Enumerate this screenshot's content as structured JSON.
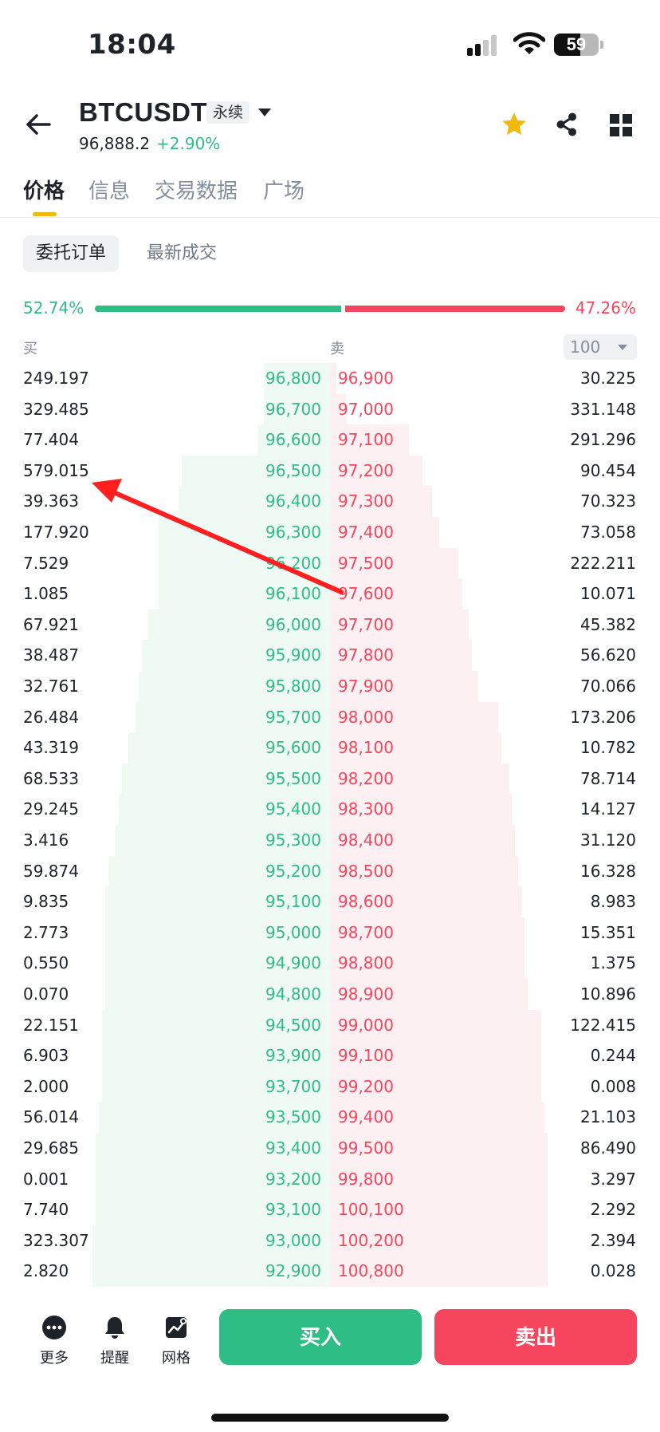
{
  "status_bar": {
    "time": "18:04",
    "battery": "59"
  },
  "header": {
    "symbol": "BTCUSDT",
    "contract_badge": "永续",
    "last_price": "96,888.2",
    "change": "+2.90%"
  },
  "tabs": [
    {
      "label": "价格",
      "active": true
    },
    {
      "label": "信息",
      "active": false
    },
    {
      "label": "交易数据",
      "active": false
    },
    {
      "label": "广场",
      "active": false
    }
  ],
  "subtabs": {
    "active": "委托订单",
    "inactive": "最新成交"
  },
  "ratio": {
    "buy_label": "52.74%",
    "sell_label": "47.26%",
    "buy_fraction": 0.5274
  },
  "columns": {
    "buy": "买",
    "sell": "卖",
    "depth": "100"
  },
  "order_book": [
    {
      "bid_qty": "249.197",
      "bid_price": "96,800",
      "ask_price": "96,900",
      "ask_qty": "30.225",
      "bid_depth": 0.2,
      "ask_depth": 0.02
    },
    {
      "bid_qty": "329.485",
      "bid_price": "96,700",
      "ask_price": "97,000",
      "ask_qty": "331.148",
      "bid_depth": 0.2,
      "ask_depth": 0.05
    },
    {
      "bid_qty": "77.404",
      "bid_price": "96,600",
      "ask_price": "97,100",
      "ask_qty": "291.296",
      "bid_depth": 0.22,
      "ask_depth": 0.24
    },
    {
      "bid_qty": "579.015",
      "bid_price": "96,500",
      "ask_price": "97,200",
      "ask_qty": "90.454",
      "bid_depth": 0.45,
      "ask_depth": 0.28
    },
    {
      "bid_qty": "39.363",
      "bid_price": "96,400",
      "ask_price": "97,300",
      "ask_qty": "70.323",
      "bid_depth": 0.46,
      "ask_depth": 0.31
    },
    {
      "bid_qty": "177.920",
      "bid_price": "96,300",
      "ask_price": "97,400",
      "ask_qty": "73.058",
      "bid_depth": 0.52,
      "ask_depth": 0.33
    },
    {
      "bid_qty": "7.529",
      "bid_price": "96,200",
      "ask_price": "97,500",
      "ask_qty": "222.211",
      "bid_depth": 0.52,
      "ask_depth": 0.39
    },
    {
      "bid_qty": "1.085",
      "bid_price": "96,100",
      "ask_price": "97,600",
      "ask_qty": "10.071",
      "bid_depth": 0.52,
      "ask_depth": 0.4
    },
    {
      "bid_qty": "67.921",
      "bid_price": "96,000",
      "ask_price": "97,700",
      "ask_qty": "45.382",
      "bid_depth": 0.55,
      "ask_depth": 0.42
    },
    {
      "bid_qty": "38.487",
      "bid_price": "95,900",
      "ask_price": "97,800",
      "ask_qty": "56.620",
      "bid_depth": 0.57,
      "ask_depth": 0.43
    },
    {
      "bid_qty": "32.761",
      "bid_price": "95,800",
      "ask_price": "97,900",
      "ask_qty": "70.066",
      "bid_depth": 0.58,
      "ask_depth": 0.45
    },
    {
      "bid_qty": "26.484",
      "bid_price": "95,700",
      "ask_price": "98,000",
      "ask_qty": "173.206",
      "bid_depth": 0.59,
      "ask_depth": 0.51
    },
    {
      "bid_qty": "43.319",
      "bid_price": "95,600",
      "ask_price": "98,100",
      "ask_qty": "10.782",
      "bid_depth": 0.61,
      "ask_depth": 0.52
    },
    {
      "bid_qty": "68.533",
      "bid_price": "95,500",
      "ask_price": "98,200",
      "ask_qty": "78.714",
      "bid_depth": 0.63,
      "ask_depth": 0.54
    },
    {
      "bid_qty": "29.245",
      "bid_price": "95,400",
      "ask_price": "98,300",
      "ask_qty": "14.127",
      "bid_depth": 0.64,
      "ask_depth": 0.55
    },
    {
      "bid_qty": "3.416",
      "bid_price": "95,300",
      "ask_price": "98,400",
      "ask_qty": "31.120",
      "bid_depth": 0.65,
      "ask_depth": 0.56
    },
    {
      "bid_qty": "59.874",
      "bid_price": "95,200",
      "ask_price": "98,500",
      "ask_qty": "16.328",
      "bid_depth": 0.67,
      "ask_depth": 0.57
    },
    {
      "bid_qty": "9.835",
      "bid_price": "95,100",
      "ask_price": "98,600",
      "ask_qty": "8.983",
      "bid_depth": 0.68,
      "ask_depth": 0.58
    },
    {
      "bid_qty": "2.773",
      "bid_price": "95,000",
      "ask_price": "98,700",
      "ask_qty": "15.351",
      "bid_depth": 0.68,
      "ask_depth": 0.59
    },
    {
      "bid_qty": "0.550",
      "bid_price": "94,900",
      "ask_price": "98,800",
      "ask_qty": "1.375",
      "bid_depth": 0.68,
      "ask_depth": 0.59
    },
    {
      "bid_qty": "0.070",
      "bid_price": "94,800",
      "ask_price": "98,900",
      "ask_qty": "10.896",
      "bid_depth": 0.68,
      "ask_depth": 0.6
    },
    {
      "bid_qty": "22.151",
      "bid_price": "94,500",
      "ask_price": "99,000",
      "ask_qty": "122.415",
      "bid_depth": 0.69,
      "ask_depth": 0.64
    },
    {
      "bid_qty": "6.903",
      "bid_price": "93,900",
      "ask_price": "99,100",
      "ask_qty": "0.244",
      "bid_depth": 0.69,
      "ask_depth": 0.64
    },
    {
      "bid_qty": "2.000",
      "bid_price": "93,700",
      "ask_price": "99,200",
      "ask_qty": "0.008",
      "bid_depth": 0.69,
      "ask_depth": 0.64
    },
    {
      "bid_qty": "56.014",
      "bid_price": "93,500",
      "ask_price": "99,400",
      "ask_qty": "21.103",
      "bid_depth": 0.7,
      "ask_depth": 0.65
    },
    {
      "bid_qty": "29.685",
      "bid_price": "93,400",
      "ask_price": "99,500",
      "ask_qty": "86.490",
      "bid_depth": 0.71,
      "ask_depth": 0.66
    },
    {
      "bid_qty": "0.001",
      "bid_price": "93,200",
      "ask_price": "99,800",
      "ask_qty": "3.297",
      "bid_depth": 0.71,
      "ask_depth": 0.66
    },
    {
      "bid_qty": "7.740",
      "bid_price": "93,100",
      "ask_price": "100,100",
      "ask_qty": "2.292",
      "bid_depth": 0.71,
      "ask_depth": 0.66
    },
    {
      "bid_qty": "323.307",
      "bid_price": "93,000",
      "ask_price": "100,200",
      "ask_qty": "2.394",
      "bid_depth": 0.72,
      "ask_depth": 0.66
    },
    {
      "bid_qty": "2.820",
      "bid_price": "92,900",
      "ask_price": "100,800",
      "ask_qty": "0.028",
      "bid_depth": 0.72,
      "ask_depth": 0.66
    }
  ],
  "bottom_bar": {
    "more": "更多",
    "alert": "提醒",
    "grid": "网格",
    "buy": "买入",
    "sell": "卖出"
  },
  "colors": {
    "buy": "#2ebd85",
    "sell": "#f6465d",
    "accent": "#f0b90b",
    "annotation": "#ff1f1f"
  }
}
